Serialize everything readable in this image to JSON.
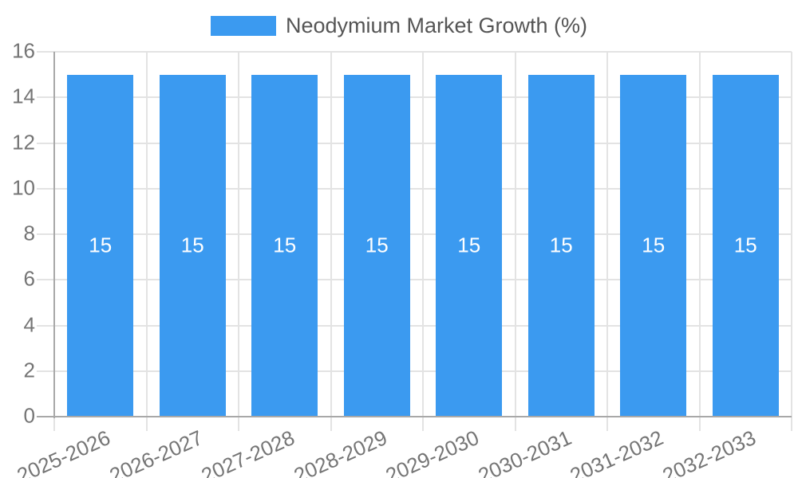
{
  "chart_data": {
    "type": "bar",
    "title": "Neodymium Market Growth (%)",
    "categories": [
      "2025-2026",
      "2026-2027",
      "2027-2028",
      "2028-2029",
      "2029-2030",
      "2030-2031",
      "2031-2032",
      "2032-2033"
    ],
    "values": [
      15,
      15,
      15,
      15,
      15,
      15,
      15,
      15
    ],
    "data_labels": [
      "15",
      "15",
      "15",
      "15",
      "15",
      "15",
      "15",
      "15"
    ],
    "xlabel": "",
    "ylabel": "",
    "ylim": [
      0,
      16
    ],
    "yticks": [
      "0",
      "2",
      "4",
      "6",
      "8",
      "10",
      "12",
      "14",
      "16"
    ],
    "grid": true,
    "legend_position": "top",
    "colors": {
      "bar": "#3B9AF0",
      "bar_label": "#FFFFFF",
      "axis_line": "#A8A8A8",
      "gridline": "#E3E3E3",
      "tick_text": "#757575",
      "legend_text": "#555555",
      "background": "#FFFFFF"
    }
  }
}
